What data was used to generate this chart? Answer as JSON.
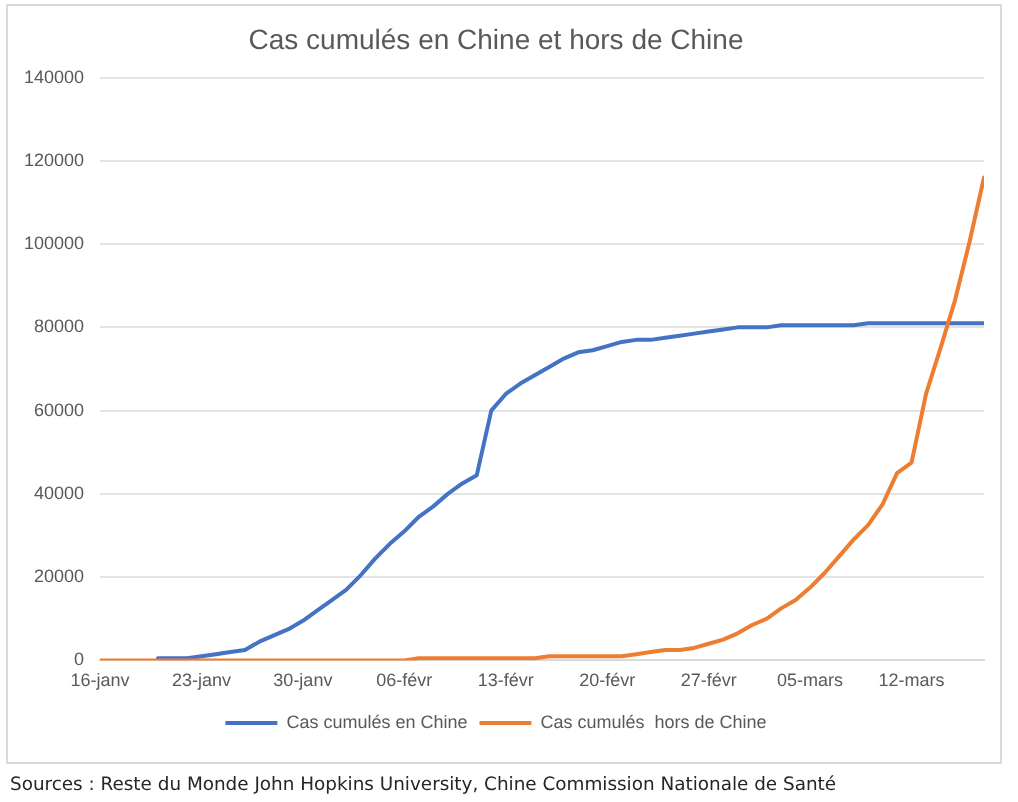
{
  "chart_data": {
    "type": "line",
    "title": "Cas cumulés en Chine et hors de Chine",
    "x": [
      "--01-16",
      "--01-17",
      "--01-18",
      "--01-19",
      "--01-20",
      "--01-21",
      "--01-22",
      "--01-23",
      "--01-24",
      "--01-25",
      "--01-26",
      "--01-27",
      "--01-28",
      "--01-29",
      "--01-30",
      "--01-31",
      "--02-01",
      "--02-02",
      "--02-03",
      "--02-04",
      "--02-05",
      "--02-06",
      "--02-07",
      "--02-08",
      "--02-09",
      "--02-10",
      "--02-11",
      "--02-12",
      "--02-13",
      "--02-14",
      "--02-15",
      "--02-16",
      "--02-17",
      "--02-18",
      "--02-19",
      "--02-20",
      "--02-21",
      "--02-22",
      "--02-23",
      "--02-24",
      "--02-25",
      "--02-26",
      "--02-27",
      "--02-28",
      "--02-29",
      "--03-01",
      "--03-02",
      "--03-03",
      "--03-04",
      "--03-05",
      "--03-06",
      "--03-07",
      "--03-08",
      "--03-09",
      "--03-10",
      "--03-11",
      "--03-12",
      "--03-13",
      "--03-14",
      "--03-15",
      "--03-16",
      "--03-17"
    ],
    "series": [
      {
        "name": "Cas cumulés en Chine",
        "color": "#4472c4",
        "x": [
          "--01-20",
          "--01-21",
          "--01-22",
          "--01-23",
          "--01-24",
          "--01-25",
          "--01-26",
          "--01-27",
          "--01-28",
          "--01-29",
          "--01-30",
          "--01-31",
          "--02-01",
          "--02-02",
          "--02-03",
          "--02-04",
          "--02-05",
          "--02-06",
          "--02-07",
          "--02-08",
          "--02-09",
          "--02-10",
          "--02-11",
          "--02-12",
          "--02-13",
          "--02-14",
          "--02-15",
          "--02-16",
          "--02-17",
          "--02-18",
          "--02-19",
          "--02-20",
          "--02-21",
          "--02-22",
          "--02-23",
          "--02-24",
          "--02-25",
          "--02-26",
          "--02-27",
          "--02-28",
          "--02-29",
          "--03-01",
          "--03-02",
          "--03-03",
          "--03-04",
          "--03-05",
          "--03-06",
          "--03-07",
          "--03-08",
          "--03-09",
          "--03-10",
          "--03-11",
          "--03-12",
          "--03-13",
          "--03-14",
          "--03-15",
          "--03-16",
          "--03-17"
        ],
        "values": [
          500,
          500,
          500,
          1000,
          1500,
          2000,
          2500,
          4500,
          6000,
          7500,
          9500,
          12000,
          14500,
          17000,
          20500,
          24500,
          28000,
          31000,
          34500,
          37000,
          40000,
          42500,
          44500,
          60000,
          64000,
          66500,
          68500,
          70500,
          72500,
          74000,
          74500,
          75500,
          76500,
          77000,
          77000,
          77500,
          78000,
          78500,
          79000,
          79500,
          80000,
          80000,
          80000,
          80500,
          80500,
          80500,
          80500,
          80500,
          80500,
          81000,
          81000,
          81000,
          81000,
          81000,
          81000,
          81000,
          81000,
          81000
        ]
      },
      {
        "name": "Cas cumulés  hors de Chine",
        "color": "#ed7d31",
        "values": [
          0,
          0,
          0,
          0,
          0,
          0,
          0,
          0,
          0,
          0,
          0,
          0,
          0,
          0,
          0,
          0,
          0,
          0,
          0,
          0,
          0,
          0,
          500,
          500,
          500,
          500,
          500,
          500,
          500,
          500,
          500,
          1000,
          1000,
          1000,
          1000,
          1000,
          1000,
          1500,
          2000,
          2500,
          2500,
          3000,
          4000,
          5000,
          6500,
          8500,
          10000,
          12500,
          14500,
          17500,
          21000,
          25000,
          29000,
          32500,
          37500,
          45000,
          47500,
          64000,
          75000,
          86500,
          100500,
          116000
        ]
      }
    ],
    "xlim": [
      "--01-16",
      "--03-17"
    ],
    "xticks": [
      {
        "value": "--01-16",
        "label": "16-janv"
      },
      {
        "value": "--01-23",
        "label": "23-janv"
      },
      {
        "value": "--01-30",
        "label": "30-janv"
      },
      {
        "value": "--02-06",
        "label": "06-févr"
      },
      {
        "value": "--02-13",
        "label": "13-févr"
      },
      {
        "value": "--02-20",
        "label": "20-févr"
      },
      {
        "value": "--02-27",
        "label": "27-févr"
      },
      {
        "value": "--03-05",
        "label": "05-mars"
      },
      {
        "value": "--03-12",
        "label": "12-mars"
      }
    ],
    "ylim": [
      0,
      140000
    ],
    "yticks": [
      0,
      20000,
      40000,
      60000,
      80000,
      100000,
      120000,
      140000
    ],
    "grid": "y",
    "legend": "bottom",
    "marker": "none",
    "annotations": [
      "Sources : Reste du Monde John Hopkins University, Chine Commission Nationale de Santé"
    ]
  }
}
